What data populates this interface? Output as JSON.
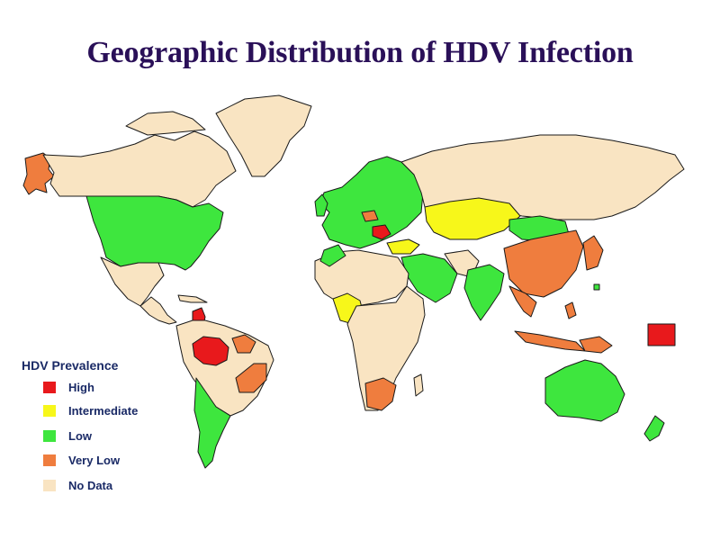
{
  "title": "Geographic Distribution of HDV Infection",
  "legend": {
    "title": "HDV Prevalence",
    "items": [
      {
        "key": "high",
        "label": "High",
        "color": "#e8191c"
      },
      {
        "key": "intermediate",
        "label": "Intermediate",
        "color": "#f7f71a"
      },
      {
        "key": "low",
        "label": "Low",
        "color": "#3ee63e"
      },
      {
        "key": "very_low",
        "label": "Very Low",
        "color": "#ef7d3e"
      },
      {
        "key": "no_data",
        "label": "No Data",
        "color": "#f9e4c2"
      }
    ]
  },
  "map": {
    "ocean_color": "#ffffff",
    "border_color": "#1a1a1a",
    "regions": [
      {
        "name": "alaska",
        "category": "very_low"
      },
      {
        "name": "canada",
        "category": "no_data"
      },
      {
        "name": "greenland",
        "category": "no_data"
      },
      {
        "name": "united-states",
        "category": "low"
      },
      {
        "name": "mexico",
        "category": "no_data"
      },
      {
        "name": "central-america",
        "category": "no_data"
      },
      {
        "name": "venezuela",
        "category": "high"
      },
      {
        "name": "amazon-basin",
        "category": "high"
      },
      {
        "name": "brazil",
        "category": "no_data"
      },
      {
        "name": "northeast-brazil",
        "category": "very_low"
      },
      {
        "name": "southeast-brazil",
        "category": "very_low"
      },
      {
        "name": "southern-south-america",
        "category": "low"
      },
      {
        "name": "europe",
        "category": "low"
      },
      {
        "name": "russia",
        "category": "no_data"
      },
      {
        "name": "kazakhstan",
        "category": "intermediate"
      },
      {
        "name": "mongolia",
        "category": "low"
      },
      {
        "name": "china",
        "category": "very_low"
      },
      {
        "name": "middle-east",
        "category": "low"
      },
      {
        "name": "india",
        "category": "low"
      },
      {
        "name": "southeast-asia",
        "category": "very_low"
      },
      {
        "name": "north-africa",
        "category": "no_data"
      },
      {
        "name": "west-africa",
        "category": "intermediate"
      },
      {
        "name": "central-africa",
        "category": "intermediate"
      },
      {
        "name": "east-africa",
        "category": "low"
      },
      {
        "name": "southern-africa",
        "category": "very_low"
      },
      {
        "name": "australia",
        "category": "low"
      },
      {
        "name": "new-zealand",
        "category": "low"
      },
      {
        "name": "pacific-islands",
        "category": "high"
      }
    ]
  }
}
